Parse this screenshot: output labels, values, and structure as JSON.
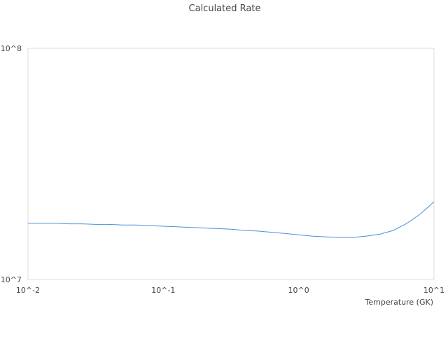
{
  "chart_data": {
    "type": "line",
    "title": "Calculated Rate",
    "xlabel": "Temperature (GK)",
    "ylabel": "",
    "x_scale": "log",
    "y_scale": "log",
    "xlim": [
      0.01,
      10
    ],
    "ylim": [
      10000000,
      100000000
    ],
    "x_tick_values": [
      0.01,
      0.1,
      1,
      10
    ],
    "x_tick_labels": [
      "10^-2",
      "10^-1",
      "10^0",
      "10^1"
    ],
    "y_tick_values": [
      10000000,
      100000000
    ],
    "y_tick_labels": [
      "10^7",
      "10^8"
    ],
    "grid": false,
    "legend": "none",
    "series": [
      {
        "color": "#4a90d9",
        "x": [
          0.01,
          0.0126,
          0.0158,
          0.02,
          0.0251,
          0.0316,
          0.0398,
          0.0501,
          0.0631,
          0.0794,
          0.1,
          0.126,
          0.158,
          0.2,
          0.251,
          0.316,
          0.398,
          0.501,
          0.631,
          0.794,
          1.0,
          1.26,
          1.58,
          2.0,
          2.51,
          3.16,
          3.98,
          5.01,
          6.31,
          7.94,
          10.0
        ],
        "y": [
          17500000,
          17500000,
          17500000,
          17400000,
          17400000,
          17300000,
          17300000,
          17200000,
          17200000,
          17100000,
          17000000,
          16900000,
          16800000,
          16700000,
          16600000,
          16500000,
          16300000,
          16200000,
          16000000,
          15800000,
          15600000,
          15400000,
          15300000,
          15200000,
          15200000,
          15400000,
          15700000,
          16300000,
          17500000,
          19200000,
          21700000
        ]
      }
    ]
  }
}
